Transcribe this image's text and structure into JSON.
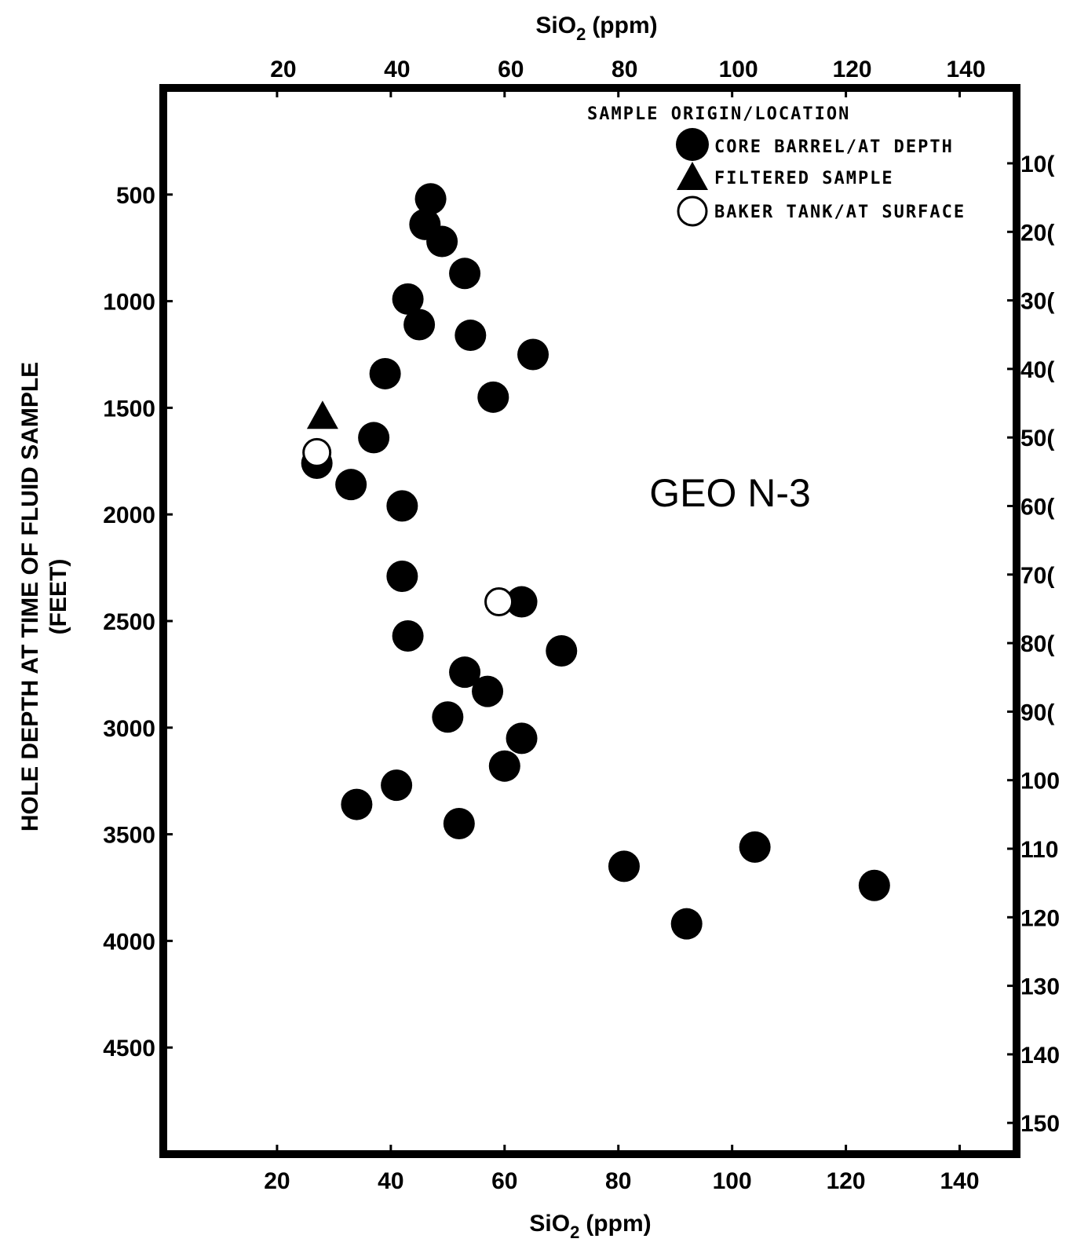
{
  "chart_data": {
    "type": "scatter",
    "title": "",
    "annotation": "GEO N-3",
    "x_axis": {
      "label_top": "SiO",
      "label_sub": "2",
      "label_unit": "(ppm)",
      "range": [
        0,
        150
      ],
      "ticks": [
        20,
        40,
        60,
        80,
        100,
        120,
        140
      ],
      "tick_labels": [
        "20",
        "40",
        "60",
        "80",
        "100",
        "120",
        "140"
      ]
    },
    "y_axis_left": {
      "label_line1": "HOLE DEPTH AT TIME OF FLUID SAMPLE",
      "label_line2": "(FEET)",
      "range": [
        0,
        5000
      ],
      "inverted": true,
      "ticks": [
        500,
        1000,
        1500,
        2000,
        2500,
        3000,
        3500,
        4000,
        4500
      ],
      "tick_labels": [
        "500",
        "1000",
        "1500",
        "2000",
        "2500",
        "3000",
        "3500",
        "4000",
        "4500"
      ]
    },
    "y_axis_right": {
      "ticks": [
        100,
        200,
        300,
        400,
        500,
        600,
        700,
        800,
        900,
        1000,
        1100,
        1200,
        1300,
        1400,
        1500
      ],
      "tick_labels": [
        "10(",
        "20(",
        "30(",
        "40(",
        "50(",
        "60(",
        "70(",
        "80(",
        "90(",
        "100",
        "110",
        "120",
        "130",
        "140",
        "150"
      ]
    },
    "legend": {
      "title": "SAMPLE ORIGIN/LOCATION",
      "placement": "top-right",
      "entries": [
        {
          "label": "CORE BARREL/AT DEPTH",
          "marker": "filled-circle"
        },
        {
          "label": "FILTERED SAMPLE",
          "marker": "filled-triangle"
        },
        {
          "label": "BAKER TANK/AT SURFACE",
          "marker": "open-circle"
        }
      ]
    },
    "grid": false,
    "series": [
      {
        "name": "CORE BARREL/AT DEPTH",
        "marker": "filled-circle",
        "points": [
          {
            "x": 47,
            "y": 520
          },
          {
            "x": 46,
            "y": 640
          },
          {
            "x": 49,
            "y": 720
          },
          {
            "x": 53,
            "y": 870
          },
          {
            "x": 43,
            "y": 990
          },
          {
            "x": 45,
            "y": 1110
          },
          {
            "x": 54,
            "y": 1160
          },
          {
            "x": 65,
            "y": 1250
          },
          {
            "x": 39,
            "y": 1340
          },
          {
            "x": 58,
            "y": 1450
          },
          {
            "x": 37,
            "y": 1640
          },
          {
            "x": 27,
            "y": 1760
          },
          {
            "x": 33,
            "y": 1860
          },
          {
            "x": 42,
            "y": 1960
          },
          {
            "x": 42,
            "y": 2290
          },
          {
            "x": 63,
            "y": 2410
          },
          {
            "x": 43,
            "y": 2570
          },
          {
            "x": 70,
            "y": 2640
          },
          {
            "x": 53,
            "y": 2740
          },
          {
            "x": 57,
            "y": 2830
          },
          {
            "x": 50,
            "y": 2950
          },
          {
            "x": 63,
            "y": 3050
          },
          {
            "x": 60,
            "y": 3180
          },
          {
            "x": 41,
            "y": 3270
          },
          {
            "x": 34,
            "y": 3360
          },
          {
            "x": 52,
            "y": 3450
          },
          {
            "x": 104,
            "y": 3560
          },
          {
            "x": 81,
            "y": 3650
          },
          {
            "x": 125,
            "y": 3740
          },
          {
            "x": 92,
            "y": 3920
          }
        ]
      },
      {
        "name": "FILTERED SAMPLE",
        "marker": "filled-triangle",
        "points": [
          {
            "x": 28,
            "y": 1540
          }
        ]
      },
      {
        "name": "BAKER TANK/AT SURFACE",
        "marker": "open-circle",
        "points": [
          {
            "x": 27,
            "y": 1710
          },
          {
            "x": 59,
            "y": 2410
          }
        ]
      }
    ]
  }
}
